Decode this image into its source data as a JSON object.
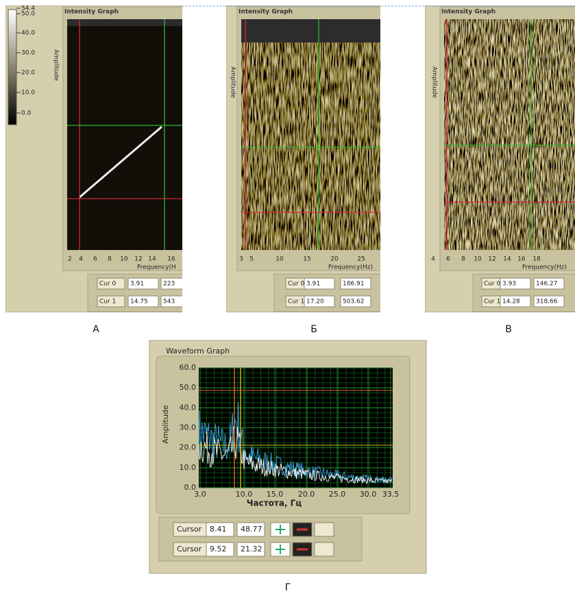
{
  "panels": [
    {
      "label": "А",
      "title": "Intensity Graph",
      "y_axis_label": "Amplitude",
      "x_axis_label": "Frequency(H",
      "x_ticks": [
        "2",
        "4",
        "6",
        "8",
        "10",
        "12",
        "14",
        "16"
      ],
      "colorbar_ticks": [
        "54.4",
        "50.0",
        "40.0",
        "30.0",
        "20.0",
        "10.0",
        "0.0"
      ],
      "cursors": [
        {
          "name": "Cur 0",
          "x": "3.91",
          "y": "223"
        },
        {
          "name": "Cur 1",
          "x": "14.75",
          "y": "543"
        }
      ]
    },
    {
      "label": "Б",
      "title": "Intensity Graph",
      "y_axis_label": "Amplitude",
      "x_axis_label": "Frequency(Hz)",
      "x_ticks": [
        "3",
        "5",
        "10",
        "15",
        "20",
        "25"
      ],
      "cursors": [
        {
          "name": "Cur 0",
          "x": "3.91",
          "y": "186.91"
        },
        {
          "name": "Cur 1",
          "x": "17.20",
          "y": "503.62"
        }
      ]
    },
    {
      "label": "В",
      "title": "Intensity Graph",
      "y_axis_label": "Amplitude",
      "x_axis_label": "Frequency(Hz)",
      "x_ticks": [
        "4",
        "6",
        "8",
        "10",
        "12",
        "14",
        "16",
        "18"
      ],
      "cursors": [
        {
          "name": "Cur 0",
          "x": "3.93",
          "y": "146.27"
        },
        {
          "name": "Cur 1",
          "x": "14.28",
          "y": "318.66"
        }
      ]
    }
  ],
  "waveform": {
    "label": "Г",
    "title": "Waveform Graph",
    "y_axis_label": "Amplitude",
    "x_axis_label": "Частота, Гц",
    "y_ticks": [
      "60.0",
      "50.0",
      "40.0",
      "30.0",
      "20.0",
      "10.0",
      "0.0"
    ],
    "x_ticks": [
      "3.0",
      "10.0",
      "15.0",
      "20.0",
      "25.0",
      "30.0",
      "33.5"
    ],
    "cursors": [
      {
        "name": "Cursor",
        "x": "8.41",
        "y": "48.77"
      },
      {
        "name": "Cursor",
        "x": "9.52",
        "y": "21.32"
      }
    ]
  }
}
